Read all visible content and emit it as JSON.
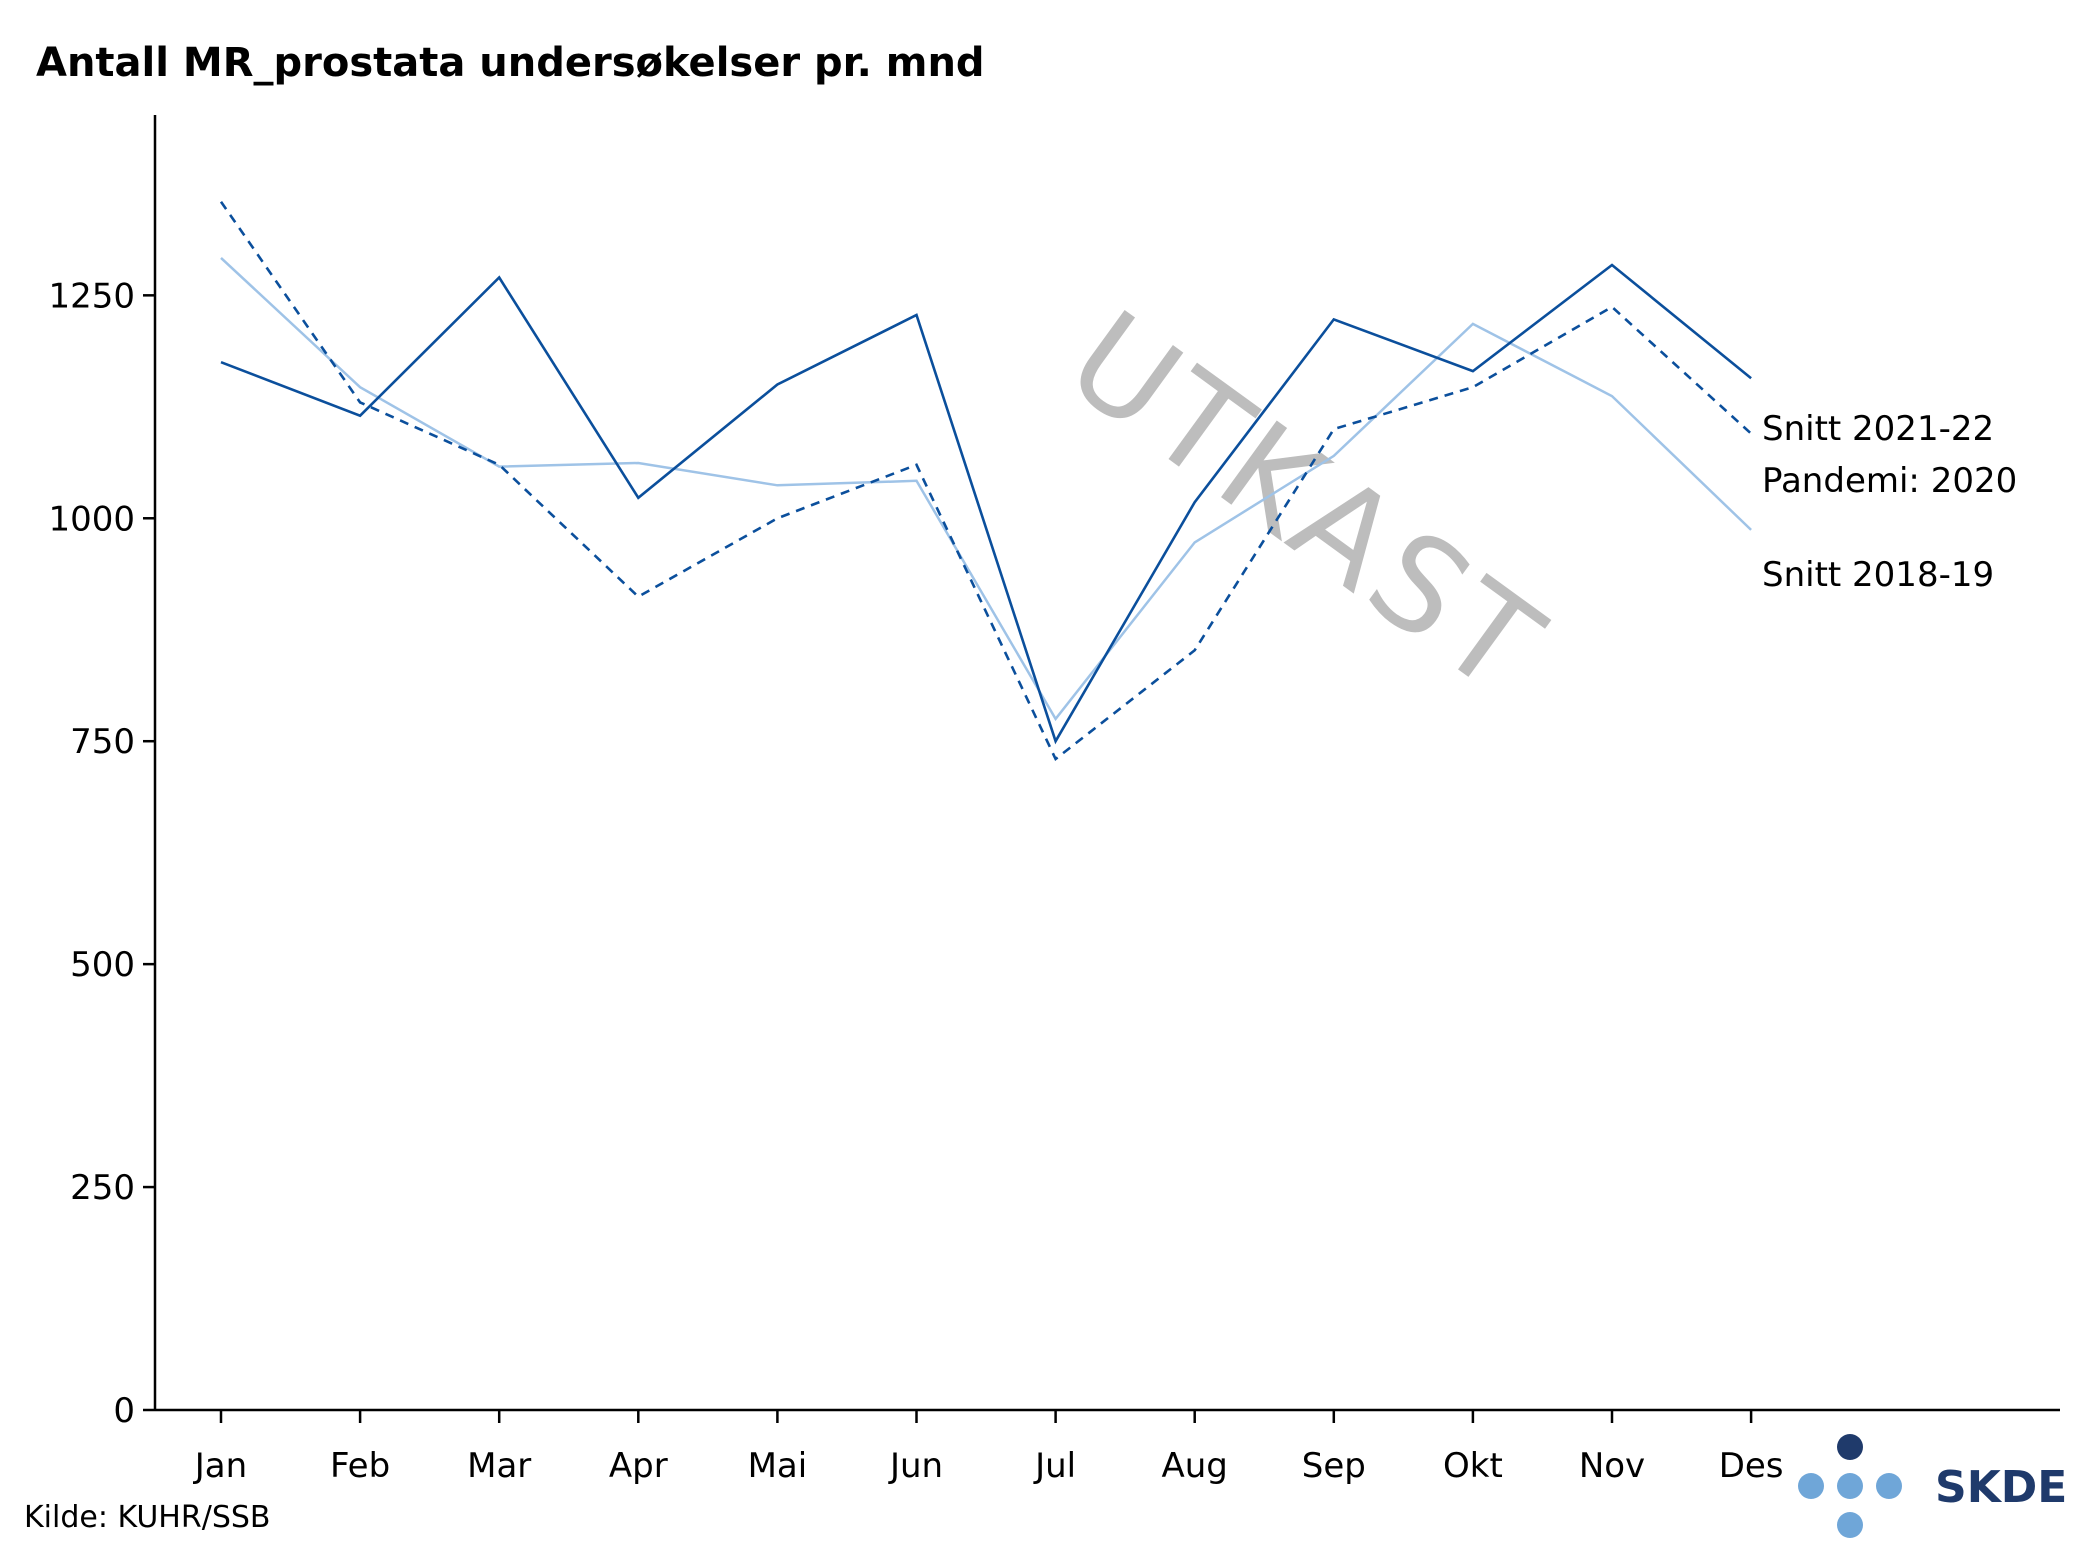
{
  "chart_data": {
    "type": "line",
    "title": "Antall MR_prostata undersøkelser pr. mnd",
    "xlabel": "",
    "ylabel": "",
    "categories": [
      "Jan",
      "Feb",
      "Mar",
      "Apr",
      "Mai",
      "Jun",
      "Jul",
      "Aug",
      "Sep",
      "Okt",
      "Nov",
      "Des"
    ],
    "ylim": [
      0,
      1450
    ],
    "yticks": [
      0,
      250,
      500,
      750,
      1000,
      1250
    ],
    "grid": false,
    "legend": "end-of-line labels, right",
    "series": [
      {
        "name": "Snitt 2021-22",
        "color": "#0b4f9c",
        "style": "solid",
        "values": [
          1175,
          1115,
          1270,
          1023,
          1150,
          1228,
          750,
          1018,
          1223,
          1165,
          1284,
          1157
        ]
      },
      {
        "name": "Pandemi: 2020",
        "color": "#0b4f9c",
        "style": "dashed",
        "values": [
          1355,
          1130,
          1060,
          912,
          1000,
          1060,
          730,
          852,
          1100,
          1147,
          1237,
          1095
        ]
      },
      {
        "name": "Snitt 2018-19",
        "color": "#9fc3e7",
        "style": "solid",
        "values": [
          1292,
          1147,
          1058,
          1062,
          1037,
          1042,
          775,
          973,
          1070,
          1218,
          1137,
          987
        ]
      }
    ]
  },
  "watermark": "UTKAST",
  "source": "Kilde: KUHR/SSB",
  "logo": {
    "text": "SKDE",
    "dot_dark": "#1f3a6b",
    "dot_light": "#6fa6d8"
  }
}
